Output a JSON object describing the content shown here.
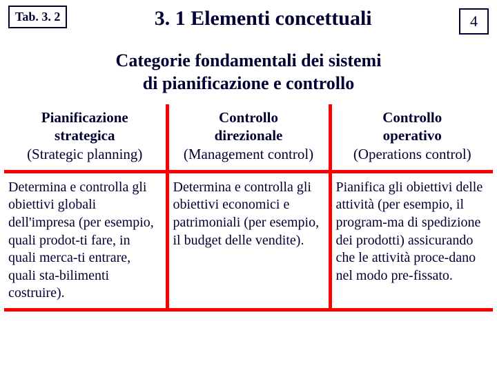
{
  "header": {
    "tab_label": "Tab. 3. 2",
    "title": "3. 1 Elementi concettuali",
    "page_number": "4"
  },
  "subtitle": "Categorie fondamentali dei sistemi\ndi pianificazione e controllo",
  "colors": {
    "text": "#000033",
    "border_red": "#ff0000",
    "border_dark": "#000033",
    "background": "#ffffff"
  },
  "table": {
    "columns": [
      {
        "line1": "Pianificazione",
        "line2": "strategica",
        "line3": "(Strategic planning)"
      },
      {
        "line1": "Controllo",
        "line2": "direzionale",
        "line3": "(Management control)"
      },
      {
        "line1": "Controllo",
        "line2": "operativo",
        "line3": "(Operations control)"
      }
    ],
    "rows": [
      [
        "Determina e controlla gli obiettivi globali dell'impresa (per esempio, quali prodot-ti fare, in quali merca-ti entrare, quali sta-bilimenti costruire).",
        "Determina e controlla gli obiettivi economici e patrimoniali (per esempio, il budget delle vendite).",
        "Pianifica gli obiettivi delle attività (per esempio, il program-ma di spedizione dei prodotti) assicurando che le attività proce-dano nel modo pre-fissato."
      ]
    ]
  },
  "typography": {
    "title_fontsize": 30,
    "subtitle_fontsize": 26,
    "header_fontsize": 21,
    "body_fontsize": 20,
    "tab_fontsize": 18,
    "page_fontsize": 22
  }
}
